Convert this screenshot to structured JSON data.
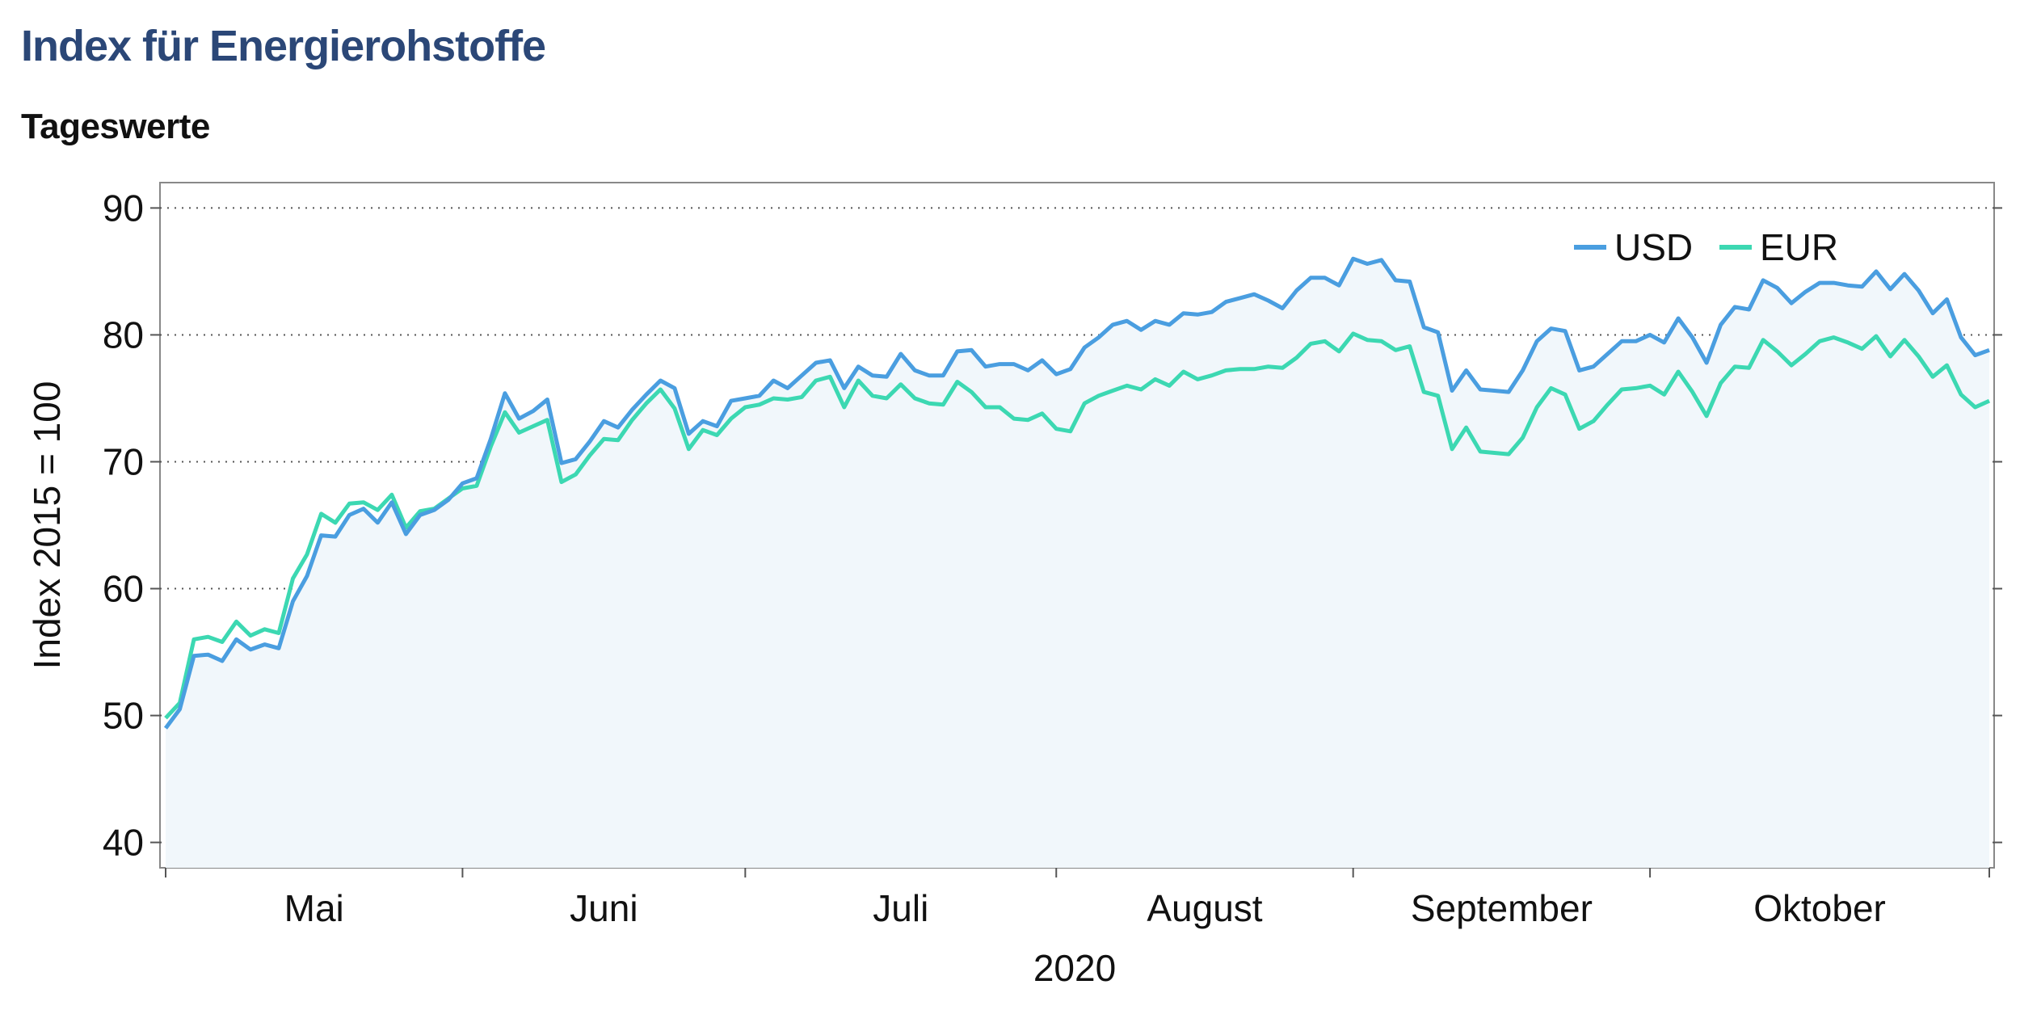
{
  "title": "Index für Energierohstoffe",
  "subtitle": "Tageswerte",
  "chart_data": {
    "type": "line",
    "ylabel": "Index 2015 = 100",
    "xlabel": "2020",
    "ylim": [
      38,
      92
    ],
    "yticks": [
      40,
      50,
      60,
      70,
      80,
      90
    ],
    "grid": "horizontal dotted",
    "area_fill_under": "USD",
    "legend": {
      "position": "top-right",
      "entries": [
        "USD",
        "EUR"
      ]
    },
    "x_month_labels": [
      "Mai",
      "Juni",
      "Juli",
      "August",
      "September",
      "Oktober"
    ],
    "series": [
      {
        "name": "USD",
        "color": "#4a9ee0",
        "values": [
          49.0,
          50.5,
          54.7,
          54.8,
          54.3,
          56.0,
          55.2,
          55.6,
          55.3,
          59.0,
          61.0,
          64.2,
          64.1,
          65.8,
          66.3,
          65.2,
          66.8,
          64.3,
          65.8,
          66.2,
          67.0,
          68.3,
          68.7,
          71.8,
          75.4,
          73.4,
          74.0,
          74.9,
          69.9,
          70.2,
          71.6,
          73.2,
          72.7,
          74.1,
          75.3,
          76.4,
          75.8,
          72.2,
          73.2,
          72.8,
          74.8,
          75.0,
          75.2,
          76.4,
          75.8,
          76.8,
          77.8,
          78.0,
          75.8,
          77.5,
          76.8,
          76.7,
          78.5,
          77.2,
          76.8,
          76.8,
          78.7,
          78.8,
          77.5,
          77.7,
          77.7,
          77.2,
          78.0,
          76.9,
          77.3,
          79.0,
          79.8,
          80.8,
          81.1,
          80.4,
          81.1,
          80.8,
          81.7,
          81.6,
          81.8,
          82.6,
          82.9,
          83.2,
          82.7,
          82.1,
          83.5,
          84.5,
          84.5,
          83.9,
          86.0,
          85.6,
          85.9,
          84.3,
          84.2,
          80.6,
          80.2,
          75.6,
          77.2,
          75.7,
          75.6,
          75.5,
          77.2,
          79.5,
          80.5,
          80.3,
          77.2,
          77.5,
          78.5,
          79.5,
          79.5,
          80.0,
          79.4,
          81.3,
          79.8,
          77.8,
          80.8,
          82.2,
          82.0,
          84.3,
          83.7,
          82.5,
          83.4,
          84.1,
          84.1,
          83.9,
          83.8,
          85.0,
          83.6,
          84.8,
          83.5,
          81.7,
          82.8,
          79.8,
          78.4,
          78.8
        ]
      },
      {
        "name": "EUR",
        "color": "#3cd8b2",
        "values": [
          49.8,
          51.0,
          56.0,
          56.2,
          55.8,
          57.4,
          56.3,
          56.8,
          56.5,
          60.8,
          62.7,
          65.9,
          65.2,
          66.7,
          66.8,
          66.2,
          67.4,
          64.8,
          66.1,
          66.3,
          67.1,
          67.9,
          68.1,
          71.2,
          73.9,
          72.3,
          72.8,
          73.3,
          68.4,
          69.0,
          70.5,
          71.8,
          71.7,
          73.3,
          74.6,
          75.7,
          74.2,
          71.0,
          72.5,
          72.1,
          73.4,
          74.3,
          74.5,
          75.0,
          74.9,
          75.1,
          76.4,
          76.7,
          74.3,
          76.4,
          75.2,
          75.0,
          76.1,
          75.0,
          74.6,
          74.5,
          76.3,
          75.5,
          74.3,
          74.3,
          73.4,
          73.3,
          73.8,
          72.6,
          72.4,
          74.6,
          75.2,
          75.6,
          76.0,
          75.7,
          76.5,
          76.0,
          77.1,
          76.5,
          76.8,
          77.2,
          77.3,
          77.3,
          77.5,
          77.4,
          78.2,
          79.3,
          79.5,
          78.7,
          80.1,
          79.6,
          79.5,
          78.8,
          79.1,
          75.5,
          75.2,
          71.0,
          72.7,
          70.8,
          70.7,
          70.6,
          71.9,
          74.3,
          75.8,
          75.3,
          72.6,
          73.2,
          74.5,
          75.7,
          75.8,
          76.0,
          75.3,
          77.1,
          75.5,
          73.6,
          76.2,
          77.5,
          77.4,
          79.6,
          78.7,
          77.6,
          78.5,
          79.5,
          79.8,
          79.4,
          78.9,
          79.9,
          78.3,
          79.6,
          78.3,
          76.7,
          77.6,
          75.3,
          74.3,
          74.8
        ]
      }
    ]
  }
}
